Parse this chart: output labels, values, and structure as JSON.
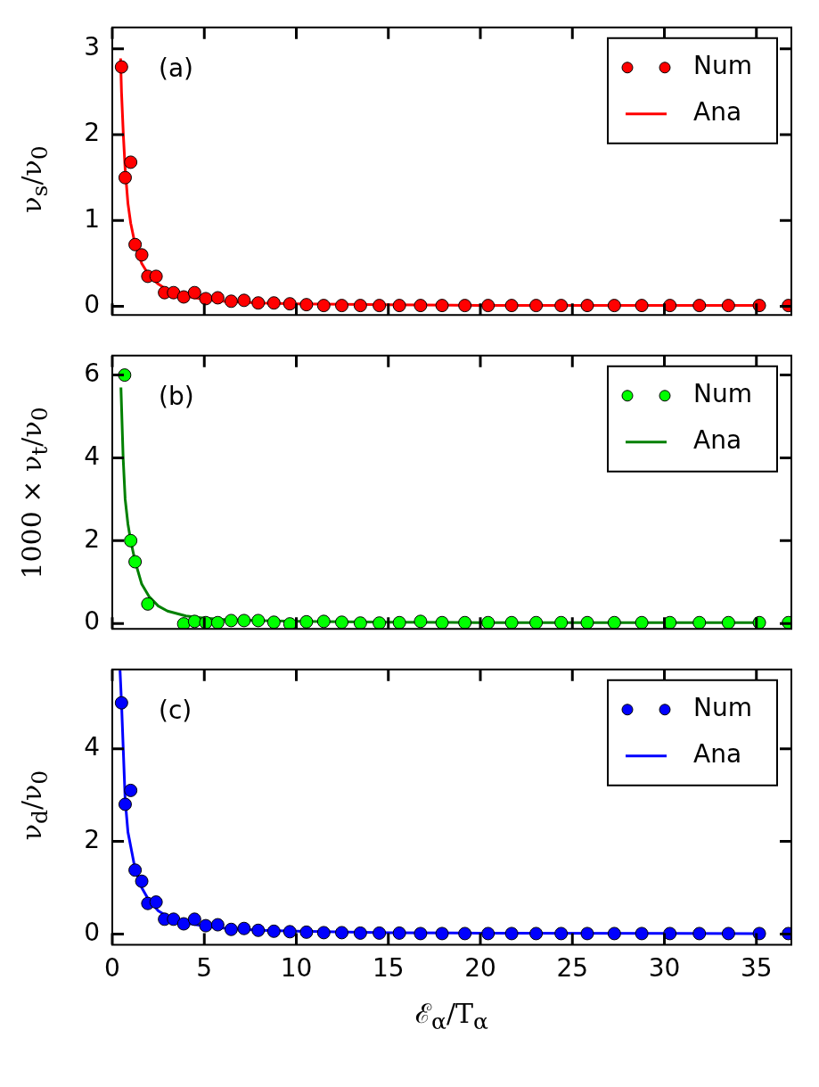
{
  "chart_data": [
    {
      "type": "scatter",
      "ylabel": "ν$_{s}$/ν$_{0}$",
      "annotations": [
        "(a)"
      ],
      "xlim": [
        0,
        36.9
      ],
      "xticks": [
        0,
        5,
        10,
        15,
        20,
        25,
        30,
        35
      ],
      "ylim": [
        -0.1,
        3.25
      ],
      "yticks": [
        0,
        1,
        2,
        3
      ],
      "tick_labels": "y",
      "legend": "top right",
      "series": [
        {
          "name": "Num",
          "marker": "circle",
          "color": "#ff0000",
          "x": [
            0.5,
            0.7,
            1.0,
            1.24,
            1.6,
            1.93,
            2.38,
            2.84,
            3.33,
            3.88,
            4.47,
            5.08,
            5.73,
            6.46,
            7.16,
            7.93,
            8.78,
            9.65,
            10.55,
            11.49,
            12.47,
            13.48,
            14.51,
            15.6,
            16.75,
            17.92,
            19.16,
            20.42,
            21.7,
            23.03,
            24.39,
            25.81,
            27.28,
            28.77,
            30.3,
            31.9,
            33.48,
            35.16,
            36.74
          ],
          "values": [
            2.79,
            1.5,
            1.68,
            0.72,
            0.6,
            0.35,
            0.35,
            0.16,
            0.16,
            0.11,
            0.16,
            0.09,
            0.1,
            0.06,
            0.07,
            0.04,
            0.04,
            0.03,
            0.02,
            0.01,
            0.01,
            0.01,
            0.01,
            0.01,
            0.01,
            0.01,
            0.01,
            0.01,
            0.01,
            0.01,
            0.01,
            0.01,
            0.01,
            0.01,
            0.01,
            0.01,
            0.01,
            0.01,
            0.01
          ]
        },
        {
          "name": "Ana",
          "type": "line",
          "marker": "none",
          "color": "#ff0000",
          "x": [
            0.45,
            0.5,
            0.6,
            0.7,
            0.85,
            1.0,
            1.24,
            1.6,
            2.0,
            2.5,
            3,
            4,
            5,
            6,
            8,
            10,
            15,
            20,
            30,
            35
          ],
          "values": [
            2.89,
            2.5,
            2.0,
            1.6,
            1.2,
            0.97,
            0.72,
            0.5,
            0.36,
            0.26,
            0.19,
            0.12,
            0.08,
            0.06,
            0.04,
            0.03,
            0.02,
            0.01,
            0.01,
            0.01
          ]
        }
      ]
    },
    {
      "type": "scatter",
      "ylabel": "1000 × ν$_{t}$/ν$_{0}$",
      "annotations": [
        "(b)"
      ],
      "xlim": [
        0,
        36.9
      ],
      "xticks": [
        0,
        5,
        10,
        15,
        20,
        25,
        30,
        35
      ],
      "ylim": [
        -0.13,
        6.47
      ],
      "yticks": [
        0,
        2,
        4,
        6
      ],
      "tick_labels": "y",
      "legend": "top right",
      "series": [
        {
          "name": "Num",
          "marker": "circle",
          "color": "#00ff00",
          "x": [
            0.67,
            1.0,
            1.24,
            1.93,
            3.88,
            4.47,
            5.08,
            5.73,
            6.46,
            7.16,
            7.93,
            8.78,
            9.65,
            10.55,
            11.49,
            12.47,
            13.48,
            14.51,
            15.6,
            16.75,
            17.92,
            19.16,
            20.42,
            21.7,
            23.03,
            24.39,
            25.81,
            27.28,
            28.77,
            30.3,
            31.9,
            33.48,
            35.16,
            36.74
          ],
          "values": [
            6.0,
            2.0,
            1.49,
            0.47,
            -0.01,
            0.05,
            0.02,
            0.02,
            0.07,
            0.07,
            0.07,
            0.03,
            -0.01,
            0.04,
            0.05,
            0.03,
            0.01,
            0.01,
            0.02,
            0.05,
            0.02,
            0.02,
            0.02,
            0.02,
            0.02,
            0.02,
            0.02,
            0.02,
            0.02,
            0.02,
            0.02,
            0.02,
            0.02,
            0.02
          ]
        },
        {
          "name": "Ana",
          "type": "line",
          "marker": "none",
          "color": "#008000",
          "x": [
            0.47,
            0.59,
            0.7,
            0.85,
            1.0,
            1.24,
            1.6,
            2.0,
            2.5,
            3,
            4,
            5,
            6,
            8,
            10,
            15,
            20,
            35
          ],
          "values": [
            5.7,
            4.0,
            3.0,
            2.4,
            2.0,
            1.5,
            0.95,
            0.65,
            0.42,
            0.3,
            0.18,
            0.13,
            0.1,
            0.07,
            0.05,
            0.03,
            0.02,
            0.02
          ]
        }
      ]
    },
    {
      "type": "scatter",
      "xlabel": "ℰ$_{α}$/T$_{α}$",
      "ylabel": "ν$_{d}$/ν$_{0}$",
      "annotations": [
        "(c)"
      ],
      "xlim": [
        0,
        36.9
      ],
      "xticks": [
        0,
        5,
        10,
        15,
        20,
        25,
        30,
        35
      ],
      "ylim": [
        -0.23,
        5.71
      ],
      "yticks": [
        0,
        2,
        4
      ],
      "legend": "top right",
      "series": [
        {
          "name": "Num",
          "marker": "circle",
          "color": "#0000ff",
          "x": [
            0.5,
            0.7,
            1.0,
            1.24,
            1.6,
            1.93,
            2.38,
            2.84,
            3.33,
            3.88,
            4.47,
            5.08,
            5.73,
            6.46,
            7.16,
            7.93,
            8.78,
            9.65,
            10.55,
            11.49,
            12.47,
            13.48,
            14.51,
            15.6,
            16.75,
            17.92,
            19.16,
            20.42,
            21.7,
            23.03,
            24.39,
            25.81,
            27.28,
            28.77,
            30.3,
            31.9,
            33.48,
            35.16,
            36.74
          ],
          "values": [
            4.99,
            2.8,
            3.1,
            1.38,
            1.14,
            0.66,
            0.69,
            0.32,
            0.32,
            0.22,
            0.32,
            0.18,
            0.2,
            0.1,
            0.12,
            0.08,
            0.06,
            0.05,
            0.04,
            0.03,
            0.03,
            0.02,
            0.02,
            0.02,
            0.01,
            0.01,
            0.01,
            0.01,
            0.01,
            0.01,
            0.01,
            0.01,
            0.01,
            0.01,
            0.01,
            0.01,
            0.01,
            0.01,
            0.01
          ]
        },
        {
          "name": "Ana",
          "type": "line",
          "marker": "none",
          "color": "#0000ff",
          "x": [
            0.42,
            0.5,
            0.59,
            0.7,
            0.85,
            1.08,
            1.24,
            1.6,
            2.0,
            2.5,
            3,
            4,
            5,
            6,
            8,
            10,
            15,
            20,
            35
          ],
          "values": [
            5.7,
            5.0,
            4.05,
            2.9,
            2.2,
            1.73,
            1.4,
            1.0,
            0.72,
            0.5,
            0.38,
            0.24,
            0.17,
            0.13,
            0.08,
            0.06,
            0.03,
            0.02,
            0.01
          ]
        }
      ]
    }
  ]
}
